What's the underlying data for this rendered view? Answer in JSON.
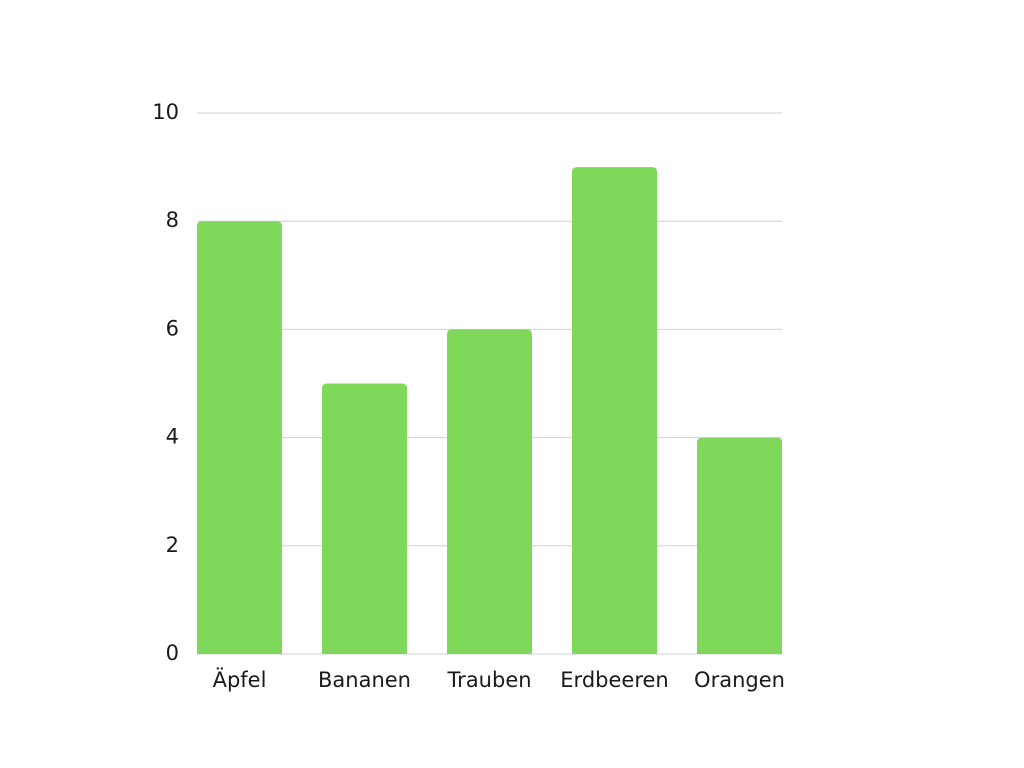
{
  "chart_data": {
    "type": "bar",
    "categories": [
      "Äpfel",
      "Bananen",
      "Trauben",
      "Erdbeeren",
      "Orangen"
    ],
    "values": [
      8,
      5,
      6,
      9,
      4
    ],
    "color": "#80d85b",
    "ylim": [
      0,
      10
    ],
    "yticks": [
      0,
      2,
      4,
      6,
      8,
      10
    ],
    "grid": true
  }
}
